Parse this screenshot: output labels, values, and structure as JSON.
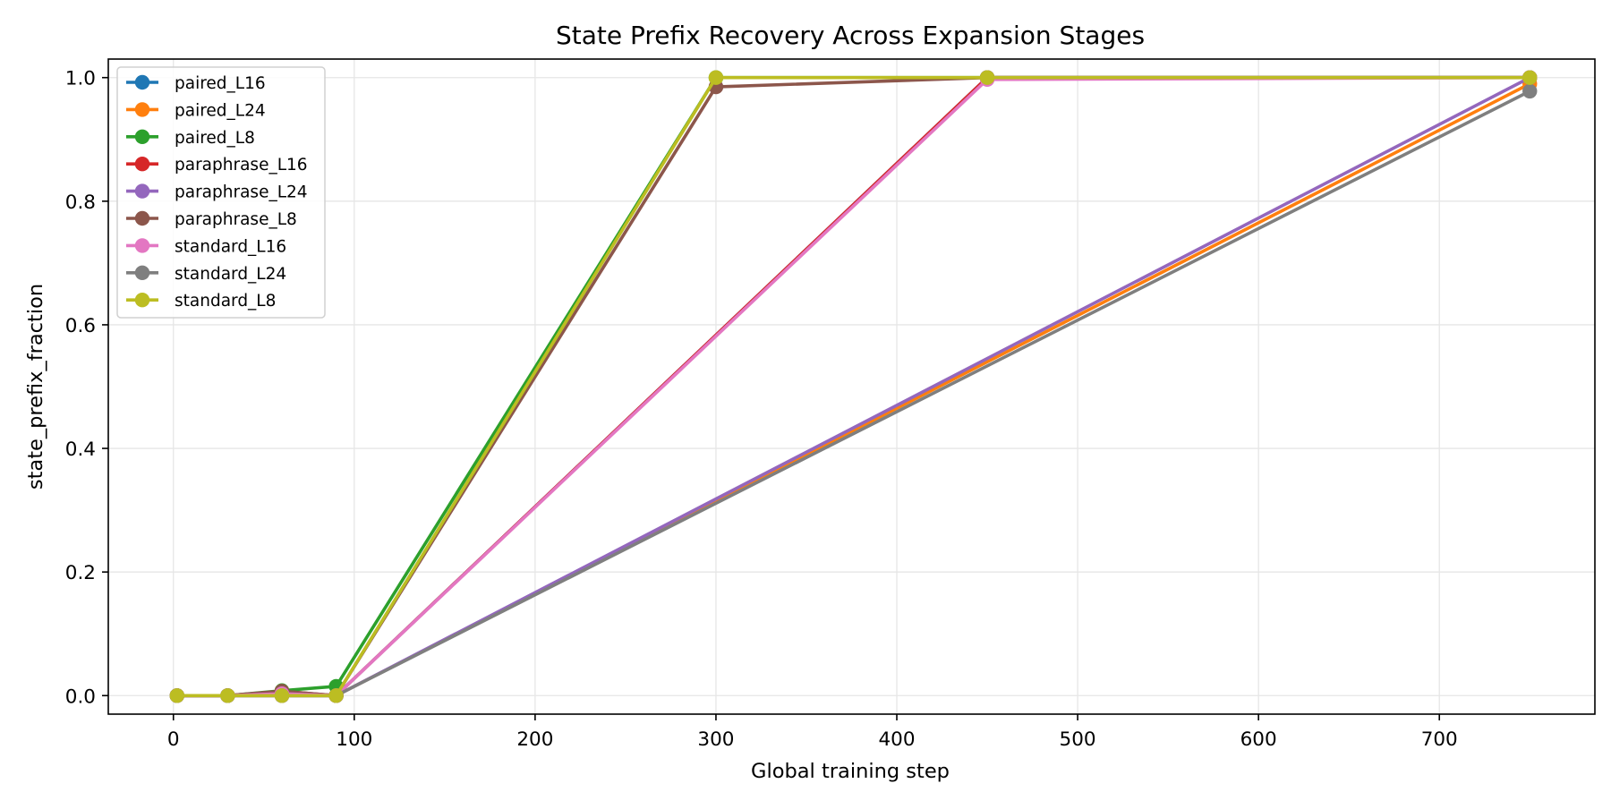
{
  "chart_data": {
    "type": "line",
    "title": "State Prefix Recovery Across Expansion Stages",
    "xlabel": "Global training step",
    "ylabel": "state_prefix_fraction",
    "xlim": [
      -36,
      786
    ],
    "ylim": [
      -0.03,
      1.03
    ],
    "xticks": [
      0,
      100,
      200,
      300,
      400,
      500,
      600,
      700
    ],
    "yticks": [
      0.0,
      0.2,
      0.4,
      0.6,
      0.8,
      1.0
    ],
    "xtick_labels": [
      "0",
      "100",
      "200",
      "300",
      "400",
      "500",
      "600",
      "700"
    ],
    "ytick_labels": [
      "0.0",
      "0.2",
      "0.4",
      "0.6",
      "0.8",
      "1.0"
    ],
    "grid": true,
    "legend_position": "top-left",
    "series": [
      {
        "name": "paired_L16",
        "color": "#1f77b4",
        "points": [
          [
            2,
            0.0
          ],
          [
            30,
            0.0
          ],
          [
            60,
            0.0
          ],
          [
            90,
            0.0
          ],
          [
            450,
            1.0
          ],
          [
            750,
            1.0
          ]
        ]
      },
      {
        "name": "paired_L24",
        "color": "#ff7f0e",
        "points": [
          [
            2,
            0.0
          ],
          [
            30,
            0.0
          ],
          [
            60,
            0.0
          ],
          [
            90,
            0.0
          ],
          [
            750,
            0.99
          ]
        ]
      },
      {
        "name": "paired_L8",
        "color": "#2ca02c",
        "points": [
          [
            2,
            0.0
          ],
          [
            30,
            0.0
          ],
          [
            60,
            0.008
          ],
          [
            90,
            0.015
          ],
          [
            300,
            1.0
          ],
          [
            450,
            1.0
          ],
          [
            750,
            1.0
          ]
        ]
      },
      {
        "name": "paraphrase_L16",
        "color": "#d62728",
        "points": [
          [
            2,
            0.0
          ],
          [
            30,
            0.0
          ],
          [
            60,
            0.007
          ],
          [
            90,
            0.0
          ],
          [
            450,
            1.0
          ],
          [
            750,
            1.0
          ]
        ]
      },
      {
        "name": "paraphrase_L24",
        "color": "#9467bd",
        "points": [
          [
            2,
            0.0
          ],
          [
            30,
            0.0
          ],
          [
            60,
            0.0
          ],
          [
            90,
            0.0
          ],
          [
            750,
            1.0
          ]
        ]
      },
      {
        "name": "paraphrase_L8",
        "color": "#8c564b",
        "points": [
          [
            2,
            0.0
          ],
          [
            30,
            0.0
          ],
          [
            60,
            0.007
          ],
          [
            90,
            0.0
          ],
          [
            300,
            0.985
          ],
          [
            450,
            1.0
          ],
          [
            750,
            1.0
          ]
        ]
      },
      {
        "name": "standard_L16",
        "color": "#e377c2",
        "points": [
          [
            2,
            0.0
          ],
          [
            30,
            0.0
          ],
          [
            60,
            0.003
          ],
          [
            90,
            0.0
          ],
          [
            450,
            0.997
          ],
          [
            750,
            1.0
          ]
        ]
      },
      {
        "name": "standard_L24",
        "color": "#7f7f7f",
        "points": [
          [
            2,
            0.0
          ],
          [
            30,
            0.0
          ],
          [
            60,
            0.0
          ],
          [
            90,
            0.0
          ],
          [
            750,
            0.978
          ]
        ]
      },
      {
        "name": "standard_L8",
        "color": "#bcbd22",
        "points": [
          [
            2,
            0.0
          ],
          [
            30,
            0.0
          ],
          [
            60,
            0.0
          ],
          [
            90,
            0.0
          ],
          [
            300,
            1.0
          ],
          [
            450,
            1.0
          ],
          [
            750,
            1.0
          ]
        ]
      }
    ]
  }
}
